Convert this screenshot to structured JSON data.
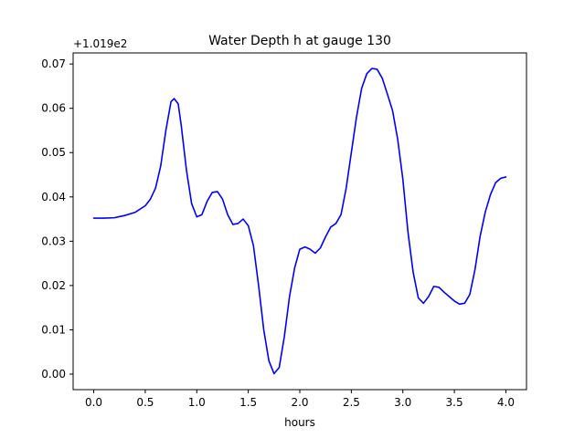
{
  "chart_data": {
    "type": "line",
    "title": "Water Depth h at gauge 130",
    "xlabel": "hours",
    "ylabel": "",
    "offset_text": "+1.019e2",
    "xlim": [
      -0.2,
      4.2
    ],
    "ylim": [
      -0.0035,
      0.0725
    ],
    "xticks": [
      0.0,
      0.5,
      1.0,
      1.5,
      2.0,
      2.5,
      3.0,
      3.5,
      4.0
    ],
    "xtick_labels": [
      "0.0",
      "0.5",
      "1.0",
      "1.5",
      "2.0",
      "2.5",
      "3.0",
      "3.5",
      "4.0"
    ],
    "yticks": [
      0.0,
      0.01,
      0.02,
      0.03,
      0.04,
      0.05,
      0.06,
      0.07
    ],
    "ytick_labels": [
      "0.00",
      "0.01",
      "0.02",
      "0.03",
      "0.04",
      "0.05",
      "0.06",
      "0.07"
    ],
    "grid": false,
    "series": [
      {
        "color": "#0000ff",
        "x": [
          0.0,
          0.1,
          0.2,
          0.3,
          0.4,
          0.5,
          0.55,
          0.6,
          0.65,
          0.7,
          0.75,
          0.78,
          0.82,
          0.85,
          0.9,
          0.95,
          1.0,
          1.05,
          1.1,
          1.15,
          1.2,
          1.25,
          1.3,
          1.35,
          1.4,
          1.45,
          1.5,
          1.55,
          1.6,
          1.65,
          1.7,
          1.75,
          1.8,
          1.85,
          1.9,
          1.95,
          2.0,
          2.05,
          2.1,
          2.15,
          2.2,
          2.25,
          2.3,
          2.35,
          2.4,
          2.45,
          2.5,
          2.55,
          2.6,
          2.65,
          2.7,
          2.75,
          2.8,
          2.85,
          2.9,
          2.95,
          3.0,
          3.05,
          3.1,
          3.15,
          3.2,
          3.25,
          3.3,
          3.35,
          3.4,
          3.45,
          3.5,
          3.55,
          3.6,
          3.65,
          3.7,
          3.75,
          3.8,
          3.85,
          3.9,
          3.95,
          4.0
        ],
        "y": [
          0.0352,
          0.0352,
          0.0353,
          0.0358,
          0.0365,
          0.038,
          0.0395,
          0.042,
          0.047,
          0.055,
          0.0615,
          0.0622,
          0.061,
          0.056,
          0.046,
          0.0385,
          0.0355,
          0.036,
          0.039,
          0.041,
          0.0412,
          0.0395,
          0.036,
          0.0338,
          0.034,
          0.035,
          0.0335,
          0.029,
          0.02,
          0.01,
          0.003,
          0.0001,
          0.0015,
          0.0085,
          0.0175,
          0.024,
          0.0282,
          0.0287,
          0.0282,
          0.0273,
          0.0285,
          0.031,
          0.0332,
          0.034,
          0.036,
          0.042,
          0.05,
          0.058,
          0.0645,
          0.0678,
          0.069,
          0.0688,
          0.0668,
          0.0632,
          0.0595,
          0.053,
          0.044,
          0.032,
          0.023,
          0.0172,
          0.016,
          0.0175,
          0.0198,
          0.0196,
          0.0185,
          0.0175,
          0.0165,
          0.0158,
          0.016,
          0.018,
          0.0236,
          0.0311,
          0.0366,
          0.0405,
          0.0432,
          0.0442,
          0.0445
        ]
      }
    ]
  }
}
